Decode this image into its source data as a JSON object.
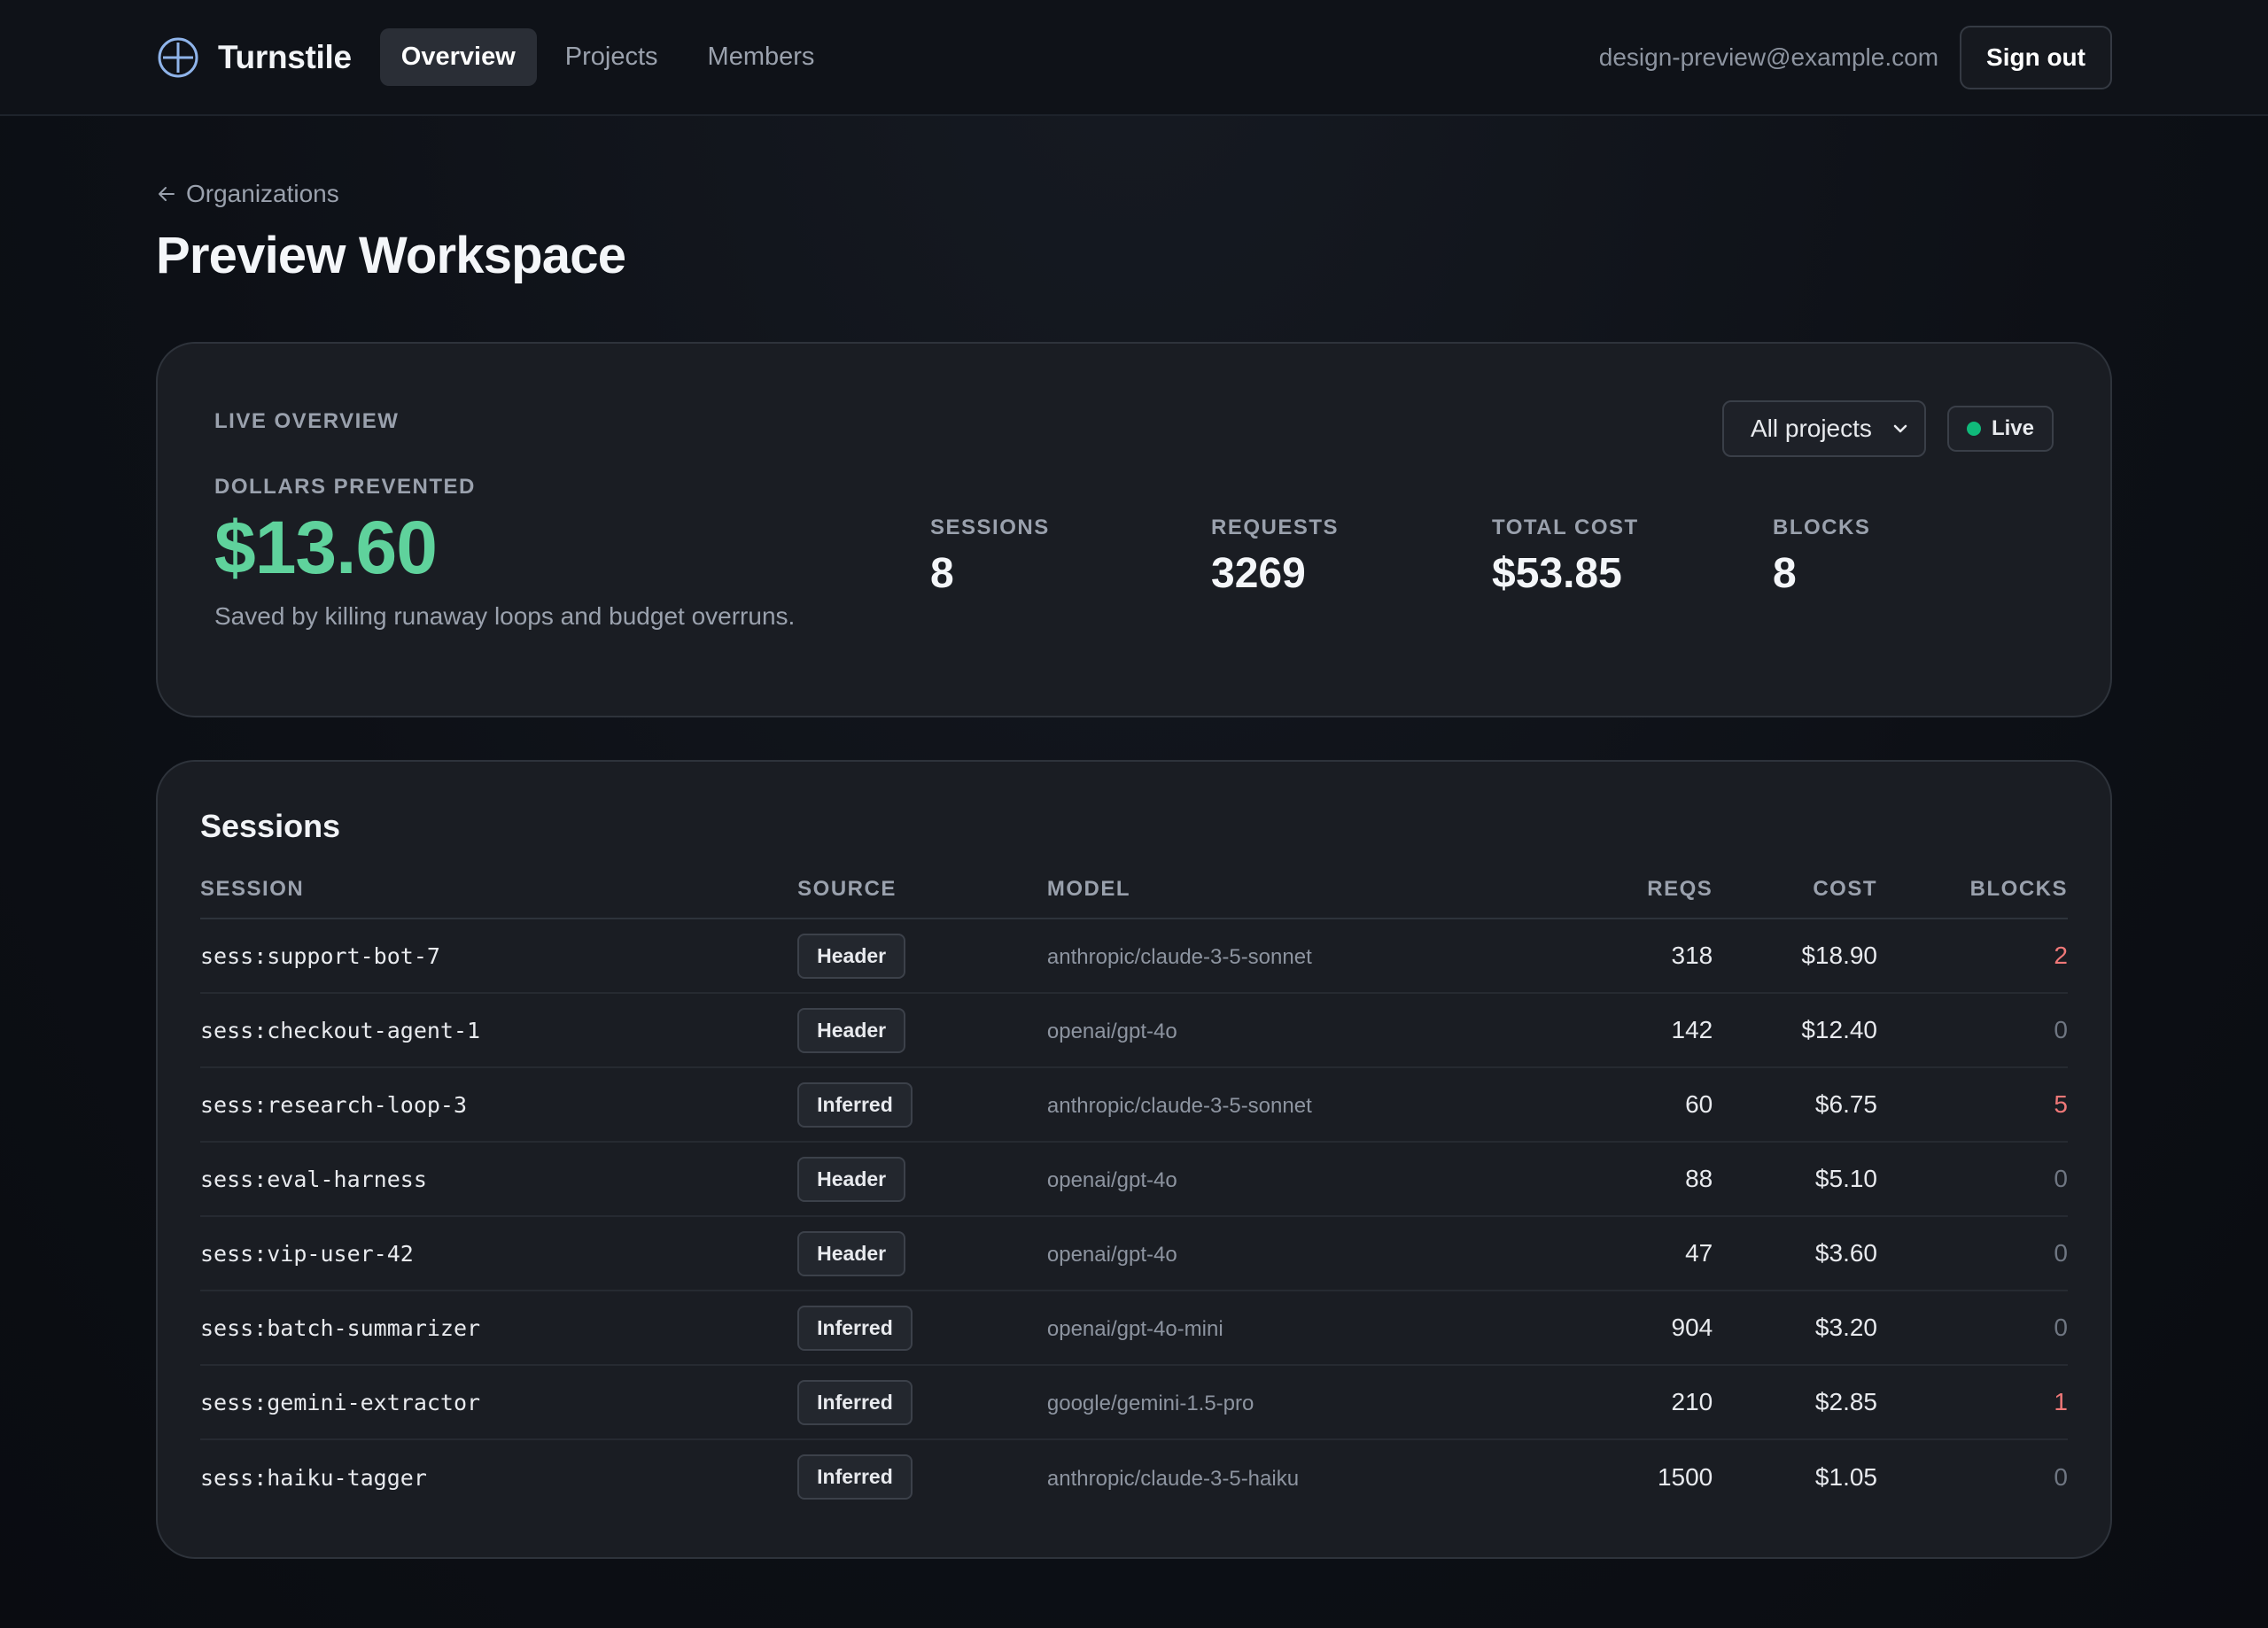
{
  "app": {
    "name": "Turnstile",
    "nav": [
      {
        "label": "Overview",
        "active": true
      },
      {
        "label": "Projects",
        "active": false
      },
      {
        "label": "Members",
        "active": false
      }
    ],
    "user_email": "design-preview@example.com",
    "signout_label": "Sign out"
  },
  "breadcrumb": {
    "back_label": "Organizations"
  },
  "page": {
    "title": "Preview Workspace"
  },
  "overview": {
    "section_label": "LIVE OVERVIEW",
    "project_filter": "All projects",
    "live_label": "Live",
    "live_color": "#10b97a",
    "prevented_label": "DOLLARS PREVENTED",
    "prevented_value": "$13.60",
    "prevented_color": "#5fd29c",
    "caption": "Saved by killing runaway loops and budget overruns.",
    "stats": [
      {
        "label": "SESSIONS",
        "value": "8"
      },
      {
        "label": "REQUESTS",
        "value": "3269"
      },
      {
        "label": "TOTAL COST",
        "value": "$53.85"
      },
      {
        "label": "BLOCKS",
        "value": "8"
      }
    ]
  },
  "sessions": {
    "title": "Sessions",
    "columns": [
      "SESSION",
      "SOURCE",
      "MODEL",
      "REQS",
      "COST",
      "BLOCKS"
    ],
    "rows": [
      {
        "session": "sess:support-bot-7",
        "source": "Header",
        "model": "anthropic/claude-3-5-sonnet",
        "reqs": "318",
        "cost": "$18.90",
        "blocks": "2"
      },
      {
        "session": "sess:checkout-agent-1",
        "source": "Header",
        "model": "openai/gpt-4o",
        "reqs": "142",
        "cost": "$12.40",
        "blocks": "0"
      },
      {
        "session": "sess:research-loop-3",
        "source": "Inferred",
        "model": "anthropic/claude-3-5-sonnet",
        "reqs": "60",
        "cost": "$6.75",
        "blocks": "5"
      },
      {
        "session": "sess:eval-harness",
        "source": "Header",
        "model": "openai/gpt-4o",
        "reqs": "88",
        "cost": "$5.10",
        "blocks": "0"
      },
      {
        "session": "sess:vip-user-42",
        "source": "Header",
        "model": "openai/gpt-4o",
        "reqs": "47",
        "cost": "$3.60",
        "blocks": "0"
      },
      {
        "session": "sess:batch-summarizer",
        "source": "Inferred",
        "model": "openai/gpt-4o-mini",
        "reqs": "904",
        "cost": "$3.20",
        "blocks": "0"
      },
      {
        "session": "sess:gemini-extractor",
        "source": "Inferred",
        "model": "google/gemini-1.5-pro",
        "reqs": "210",
        "cost": "$2.85",
        "blocks": "1"
      },
      {
        "session": "sess:haiku-tagger",
        "source": "Inferred",
        "model": "anthropic/claude-3-5-haiku",
        "reqs": "1500",
        "cost": "$1.05",
        "blocks": "0"
      }
    ]
  }
}
